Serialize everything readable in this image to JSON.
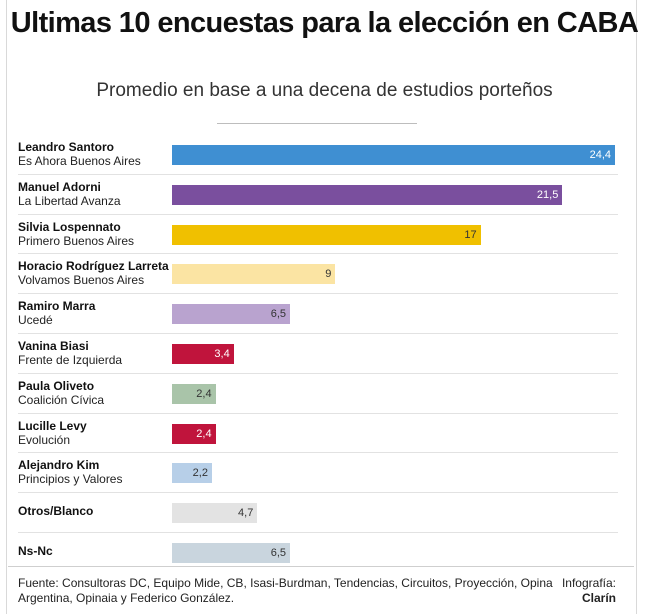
{
  "title": "Ultimas 10 encuestas para la elección en CABA",
  "subtitle": "Promedio en base a una decena de estudios porteños",
  "chart_data": {
    "type": "bar",
    "orientation": "horizontal",
    "xlim": [
      0,
      24.4
    ],
    "bars": [
      {
        "name": "Leandro Santoro",
        "party": "Es Ahora Buenos Aires",
        "value": 24.4,
        "label": "24,4",
        "color": "#3f8fd2",
        "label_color": "#ffffff"
      },
      {
        "name": "Manuel Adorni",
        "party": "La Libertad Avanza",
        "value": 21.5,
        "label": "21,5",
        "color": "#7a4f9e",
        "label_color": "#ffffff"
      },
      {
        "name": "Silvia Lospennato",
        "party": "Primero Buenos Aires",
        "value": 17,
        "label": "17",
        "color": "#f0c000",
        "label_color": "#333333"
      },
      {
        "name": "Horacio Rodríguez Larreta",
        "party": "Volvamos Buenos Aires",
        "value": 9,
        "label": "9",
        "color": "#fbe4a3",
        "label_color": "#333333"
      },
      {
        "name": "Ramiro Marra",
        "party": "Ucedé",
        "value": 6.5,
        "label": "6,5",
        "color": "#b9a3cf",
        "label_color": "#333333"
      },
      {
        "name": "Vanina Biasi",
        "party": "Frente de Izquierda",
        "value": 3.4,
        "label": "3,4",
        "color": "#c0143c",
        "label_color": "#ffffff"
      },
      {
        "name": "Paula Oliveto",
        "party": "Coalición Cívica",
        "value": 2.4,
        "label": "2,4",
        "color": "#a9c4a9",
        "label_color": "#333333"
      },
      {
        "name": "Lucille Levy",
        "party": "Evolución",
        "value": 2.4,
        "label": "2,4",
        "color": "#c0143c",
        "label_color": "#ffffff"
      },
      {
        "name": "Alejandro Kim",
        "party": "Principios y Valores",
        "value": 2.2,
        "label": "2,2",
        "color": "#b7cfe8",
        "label_color": "#333333"
      },
      {
        "name": "Otros/Blanco",
        "party": "",
        "value": 4.7,
        "label": "4,7",
        "color": "#e3e3e3",
        "label_color": "#333333"
      },
      {
        "name": "Ns-Nc",
        "party": "",
        "value": 6.5,
        "label": "6,5",
        "color": "#c9d5de",
        "label_color": "#333333"
      }
    ]
  },
  "footer": {
    "source": "Fuente: Consultoras DC, Equipo Mide, CB, Isasi-Burdman, Tendencias, Circuitos, Proyección, Opina Argentina, Opinaia y Federico González.",
    "credit_label": "Infografía:",
    "credit_name": "Clarín"
  }
}
